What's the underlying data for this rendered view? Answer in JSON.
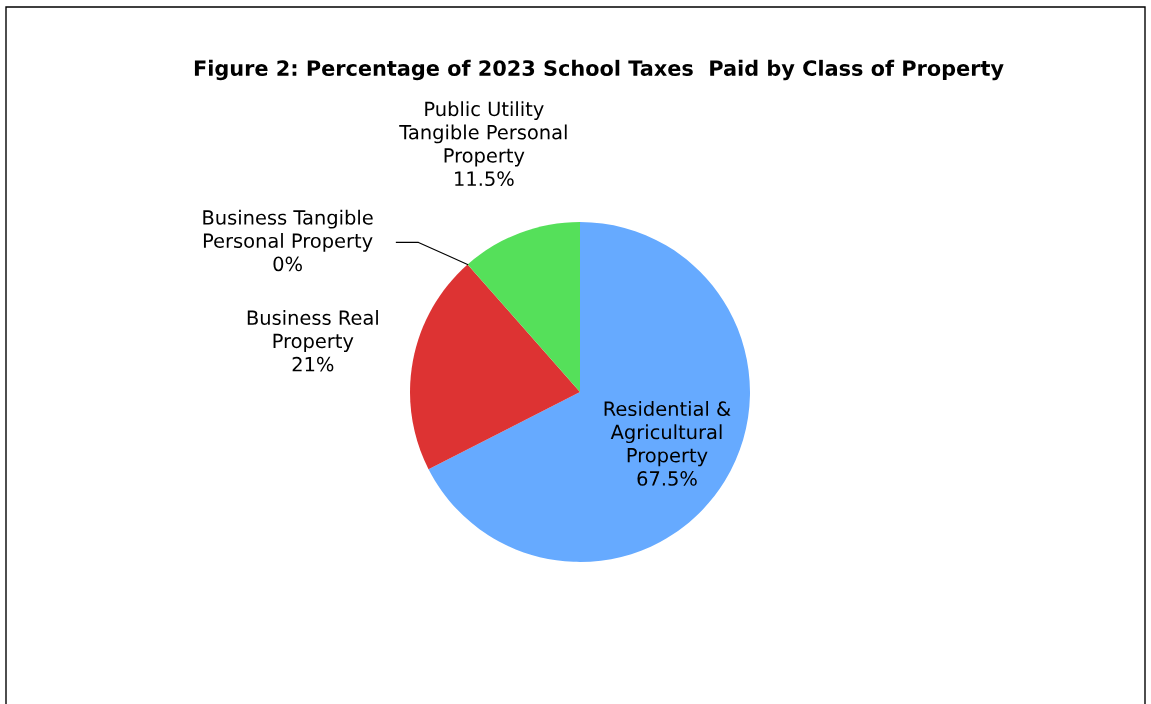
{
  "chart_data": {
    "type": "pie",
    "title": "Figure 2: Percentage of 2023 School Taxes  Paid by Class of Property",
    "categories": [
      "Residential & Agricultural Property",
      "Business Real Property",
      "Business Tangible Personal Property",
      "Public Utility Tangible Personal Property"
    ],
    "values": [
      67.5,
      21,
      0,
      11.5
    ],
    "colors": [
      "#66aaff",
      "#dd3333",
      "#55e05a",
      "#55e05a"
    ],
    "value_labels": [
      "67.5%",
      "21%",
      "0%",
      "11.5%"
    ]
  }
}
